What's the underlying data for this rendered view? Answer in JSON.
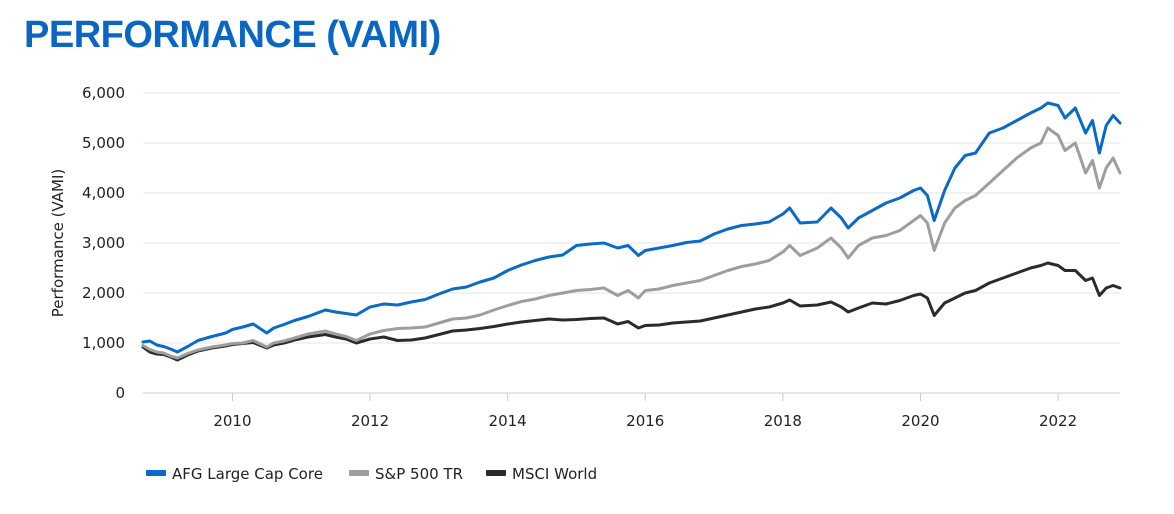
{
  "title": "PERFORMANCE (VAMI)",
  "colors": {
    "title": "#0a66c2",
    "grid": "#e6e6e6",
    "axis": "#cccccc"
  },
  "chart_data": {
    "type": "line",
    "title": "PERFORMANCE (VAMI)",
    "xlabel": "",
    "ylabel": "Performance (VAMI)",
    "xlim": [
      2008.7,
      2022.9
    ],
    "ylim": [
      0,
      6000
    ],
    "xticks": [
      2010,
      2012,
      2014,
      2016,
      2018,
      2020,
      2022
    ],
    "xtick_labels": [
      "2010",
      "2012",
      "2014",
      "2016",
      "2018",
      "2020",
      "2022"
    ],
    "yticks": [
      0,
      1000,
      2000,
      3000,
      4000,
      5000,
      6000
    ],
    "ytick_labels": [
      "0",
      "1,000",
      "2,000",
      "3,000",
      "4,000",
      "5,000",
      "6,000"
    ],
    "grid": "horizontal",
    "legend": "bottom-left",
    "series": [
      {
        "name": "AFG Large Cap Core",
        "color": "#0a6ac7",
        "x": [
          2008.7,
          2008.8,
          2008.9,
          2009.0,
          2009.1,
          2009.2,
          2009.35,
          2009.5,
          2009.7,
          2009.9,
          2010.0,
          2010.15,
          2010.3,
          2010.5,
          2010.6,
          2010.75,
          2010.9,
          2011.1,
          2011.35,
          2011.5,
          2011.65,
          2011.8,
          2012.0,
          2012.2,
          2012.4,
          2012.6,
          2012.8,
          2013.0,
          2013.2,
          2013.4,
          2013.6,
          2013.8,
          2014.0,
          2014.2,
          2014.4,
          2014.6,
          2014.8,
          2015.0,
          2015.2,
          2015.4,
          2015.6,
          2015.75,
          2015.9,
          2016.0,
          2016.2,
          2016.4,
          2016.6,
          2016.8,
          2017.0,
          2017.2,
          2017.4,
          2017.6,
          2017.8,
          2018.0,
          2018.1,
          2018.25,
          2018.5,
          2018.7,
          2018.85,
          2018.95,
          2019.1,
          2019.3,
          2019.5,
          2019.7,
          2019.9,
          2020.0,
          2020.1,
          2020.2,
          2020.35,
          2020.5,
          2020.65,
          2020.8,
          2021.0,
          2021.2,
          2021.4,
          2021.6,
          2021.75,
          2021.85,
          2022.0,
          2022.1,
          2022.25,
          2022.4,
          2022.5,
          2022.6,
          2022.7,
          2022.8,
          2022.9
        ],
        "values": [
          1020,
          1040,
          960,
          930,
          880,
          820,
          930,
          1050,
          1130,
          1200,
          1270,
          1320,
          1380,
          1200,
          1300,
          1370,
          1450,
          1530,
          1660,
          1620,
          1590,
          1560,
          1720,
          1780,
          1760,
          1820,
          1870,
          1980,
          2080,
          2120,
          2220,
          2300,
          2450,
          2560,
          2650,
          2720,
          2760,
          2950,
          2980,
          3000,
          2900,
          2950,
          2750,
          2850,
          2900,
          2950,
          3010,
          3040,
          3180,
          3280,
          3350,
          3380,
          3420,
          3580,
          3700,
          3400,
          3420,
          3700,
          3500,
          3300,
          3500,
          3650,
          3800,
          3900,
          4050,
          4100,
          3950,
          3450,
          4050,
          4500,
          4750,
          4800,
          5200,
          5300,
          5450,
          5600,
          5700,
          5800,
          5750,
          5500,
          5700,
          5200,
          5450,
          4800,
          5350,
          5550,
          5400
        ]
      },
      {
        "name": "S&P 500 TR",
        "color": "#9e9e9e",
        "x": [
          2008.7,
          2008.8,
          2008.9,
          2009.0,
          2009.1,
          2009.2,
          2009.35,
          2009.5,
          2009.7,
          2009.9,
          2010.0,
          2010.15,
          2010.3,
          2010.5,
          2010.6,
          2010.75,
          2010.9,
          2011.1,
          2011.35,
          2011.5,
          2011.65,
          2011.8,
          2012.0,
          2012.2,
          2012.4,
          2012.6,
          2012.8,
          2013.0,
          2013.2,
          2013.4,
          2013.6,
          2013.8,
          2014.0,
          2014.2,
          2014.4,
          2014.6,
          2014.8,
          2015.0,
          2015.2,
          2015.4,
          2015.6,
          2015.75,
          2015.9,
          2016.0,
          2016.2,
          2016.4,
          2016.6,
          2016.8,
          2017.0,
          2017.2,
          2017.4,
          2017.6,
          2017.8,
          2018.0,
          2018.1,
          2018.25,
          2018.5,
          2018.7,
          2018.85,
          2018.95,
          2019.1,
          2019.3,
          2019.5,
          2019.7,
          2019.9,
          2020.0,
          2020.1,
          2020.2,
          2020.35,
          2020.5,
          2020.65,
          2020.8,
          2021.0,
          2021.2,
          2021.4,
          2021.6,
          2021.75,
          2021.85,
          2022.0,
          2022.1,
          2022.25,
          2022.4,
          2022.5,
          2022.6,
          2022.7,
          2022.8,
          2022.9
        ],
        "values": [
          950,
          870,
          820,
          800,
          740,
          700,
          790,
          860,
          920,
          960,
          990,
          1000,
          1050,
          920,
          1000,
          1040,
          1100,
          1180,
          1240,
          1180,
          1130,
          1050,
          1180,
          1250,
          1290,
          1300,
          1320,
          1400,
          1480,
          1500,
          1560,
          1660,
          1750,
          1830,
          1880,
          1950,
          2000,
          2050,
          2070,
          2100,
          1950,
          2050,
          1900,
          2050,
          2080,
          2150,
          2200,
          2250,
          2350,
          2450,
          2530,
          2580,
          2650,
          2820,
          2950,
          2750,
          2900,
          3100,
          2900,
          2700,
          2950,
          3100,
          3150,
          3250,
          3450,
          3550,
          3400,
          2850,
          3400,
          3700,
          3850,
          3950,
          4200,
          4450,
          4700,
          4900,
          5000,
          5300,
          5150,
          4850,
          5000,
          4400,
          4650,
          4100,
          4500,
          4700,
          4400
        ]
      },
      {
        "name": "MSCI World",
        "color": "#2b2b2b",
        "x": [
          2008.7,
          2008.8,
          2008.9,
          2009.0,
          2009.1,
          2009.2,
          2009.35,
          2009.5,
          2009.7,
          2009.9,
          2010.0,
          2010.15,
          2010.3,
          2010.5,
          2010.6,
          2010.75,
          2010.9,
          2011.1,
          2011.35,
          2011.5,
          2011.65,
          2011.8,
          2012.0,
          2012.2,
          2012.4,
          2012.6,
          2012.8,
          2013.0,
          2013.2,
          2013.4,
          2013.6,
          2013.8,
          2014.0,
          2014.2,
          2014.4,
          2014.6,
          2014.8,
          2015.0,
          2015.2,
          2015.4,
          2015.6,
          2015.75,
          2015.9,
          2016.0,
          2016.2,
          2016.4,
          2016.6,
          2016.8,
          2017.0,
          2017.2,
          2017.4,
          2017.6,
          2017.8,
          2018.0,
          2018.1,
          2018.25,
          2018.5,
          2018.7,
          2018.85,
          2018.95,
          2019.1,
          2019.3,
          2019.5,
          2019.7,
          2019.9,
          2020.0,
          2020.1,
          2020.2,
          2020.35,
          2020.5,
          2020.65,
          2020.8,
          2021.0,
          2021.2,
          2021.4,
          2021.6,
          2021.75,
          2021.85,
          2022.0,
          2022.1,
          2022.25,
          2022.4,
          2022.5,
          2022.6,
          2022.7,
          2022.8,
          2022.9
        ],
        "values": [
          920,
          820,
          780,
          770,
          720,
          660,
          760,
          840,
          900,
          940,
          970,
          990,
          1010,
          900,
          960,
          1000,
          1060,
          1120,
          1170,
          1120,
          1080,
          1000,
          1080,
          1120,
          1050,
          1060,
          1100,
          1170,
          1240,
          1260,
          1290,
          1330,
          1380,
          1420,
          1450,
          1480,
          1460,
          1470,
          1490,
          1500,
          1380,
          1430,
          1300,
          1350,
          1360,
          1400,
          1420,
          1440,
          1500,
          1560,
          1620,
          1680,
          1720,
          1800,
          1860,
          1740,
          1760,
          1820,
          1720,
          1620,
          1700,
          1800,
          1780,
          1850,
          1950,
          1980,
          1900,
          1550,
          1800,
          1900,
          2000,
          2050,
          2200,
          2300,
          2400,
          2500,
          2550,
          2600,
          2550,
          2450,
          2450,
          2250,
          2300,
          1950,
          2100,
          2150,
          2100
        ]
      }
    ]
  }
}
